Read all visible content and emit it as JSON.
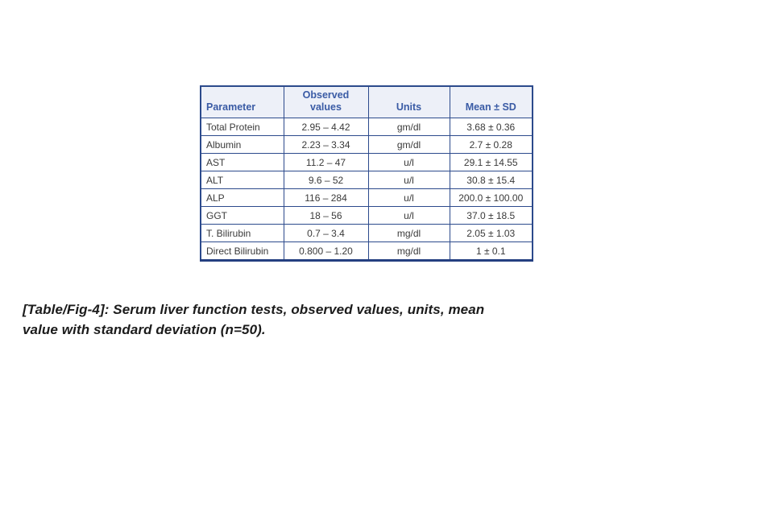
{
  "table": {
    "columns": [
      "Parameter",
      "Observed\nvalues",
      "Units",
      "Mean ± SD"
    ],
    "rows": [
      [
        "Total Protein",
        "2.95 – 4.42",
        "gm/dl",
        "3.68 ± 0.36"
      ],
      [
        "Albumin",
        "2.23 – 3.34",
        "gm/dl",
        "2.7 ± 0.28"
      ],
      [
        "AST",
        "11.2 – 47",
        "u/l",
        "29.1 ± 14.55"
      ],
      [
        "ALT",
        "9.6 – 52",
        "u/l",
        "30.8 ± 15.4"
      ],
      [
        "ALP",
        "116 – 284",
        "u/l",
        "200.0 ± 100.00"
      ],
      [
        "GGT",
        "18 – 56",
        "u/l",
        "37.0 ± 18.5"
      ],
      [
        "T. Bilirubin",
        "0.7 – 3.4",
        "mg/dl",
        "2.05 ± 1.03"
      ],
      [
        "Direct Bilirubin",
        "0.800 – 1.20",
        "mg/dl",
        "1 ± 0.1"
      ]
    ],
    "colors": {
      "border": "#2c4a8c",
      "header_bg": "#edf0f8",
      "header_text": "#3a5ba5",
      "body_text": "#3a3a3a"
    }
  },
  "caption": {
    "line1": "[Table/Fig-4]: Serum liver function tests, observed values, units, mean",
    "line2": "value with standard deviation (n=50)."
  }
}
